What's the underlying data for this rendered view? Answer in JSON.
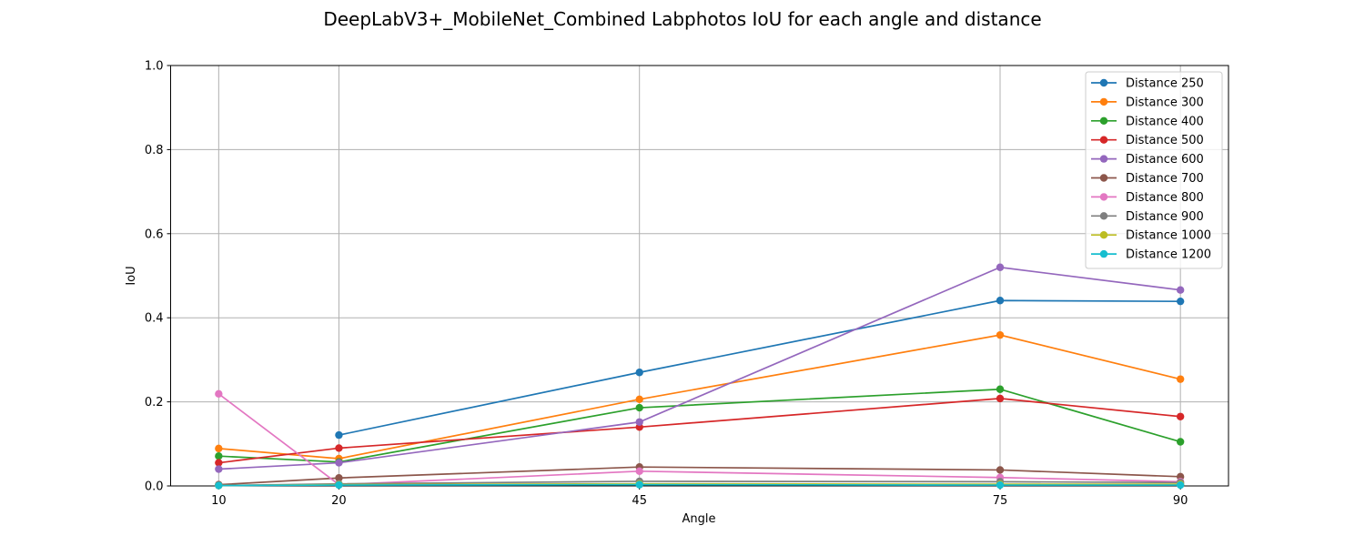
{
  "chart_data": {
    "type": "line",
    "title": "DeepLabV3+_MobileNet_Combined Labphotos IoU for each angle and distance",
    "xlabel": "Angle",
    "ylabel": "IoU",
    "x": [
      10,
      20,
      45,
      75,
      90
    ],
    "x_tick_labels": [
      "10",
      "20",
      "45",
      "75",
      "90"
    ],
    "y_ticks": [
      "0.0",
      "0.2",
      "0.4",
      "0.6",
      "0.8",
      "1.0"
    ],
    "xlim": [
      6,
      94
    ],
    "ylim": [
      0,
      1
    ],
    "grid": true,
    "legend_position": "top-right",
    "series": [
      {
        "name": "Distance 250",
        "color": "#1f77b4",
        "values": [
          null,
          0.121,
          0.27,
          0.441,
          0.439
        ]
      },
      {
        "name": "Distance 300",
        "color": "#ff7f0e",
        "values": [
          0.089,
          0.065,
          0.206,
          0.359,
          0.254
        ]
      },
      {
        "name": "Distance 400",
        "color": "#2ca02c",
        "values": [
          0.071,
          0.057,
          0.186,
          0.23,
          0.105
        ]
      },
      {
        "name": "Distance 500",
        "color": "#d62728",
        "values": [
          0.055,
          0.09,
          0.14,
          0.208,
          0.165
        ]
      },
      {
        "name": "Distance 600",
        "color": "#9467bd",
        "values": [
          0.04,
          0.055,
          0.152,
          0.52,
          0.466
        ]
      },
      {
        "name": "Distance 700",
        "color": "#8c564b",
        "values": [
          0.003,
          0.019,
          0.045,
          0.038,
          0.022
        ]
      },
      {
        "name": "Distance 800",
        "color": "#e377c2",
        "values": [
          0.219,
          0.003,
          0.035,
          0.02,
          0.01
        ]
      },
      {
        "name": "Distance 900",
        "color": "#7f7f7f",
        "values": [
          0.001,
          0.005,
          0.011,
          0.01,
          0.008
        ]
      },
      {
        "name": "Distance 1000",
        "color": "#bcbd22",
        "values": [
          0.001,
          0.003,
          0.005,
          0.004,
          0.004
        ]
      },
      {
        "name": "Distance 1200",
        "color": "#17becf",
        "values": [
          0.001,
          0.002,
          0.003,
          0.002,
          0.002
        ]
      }
    ]
  }
}
